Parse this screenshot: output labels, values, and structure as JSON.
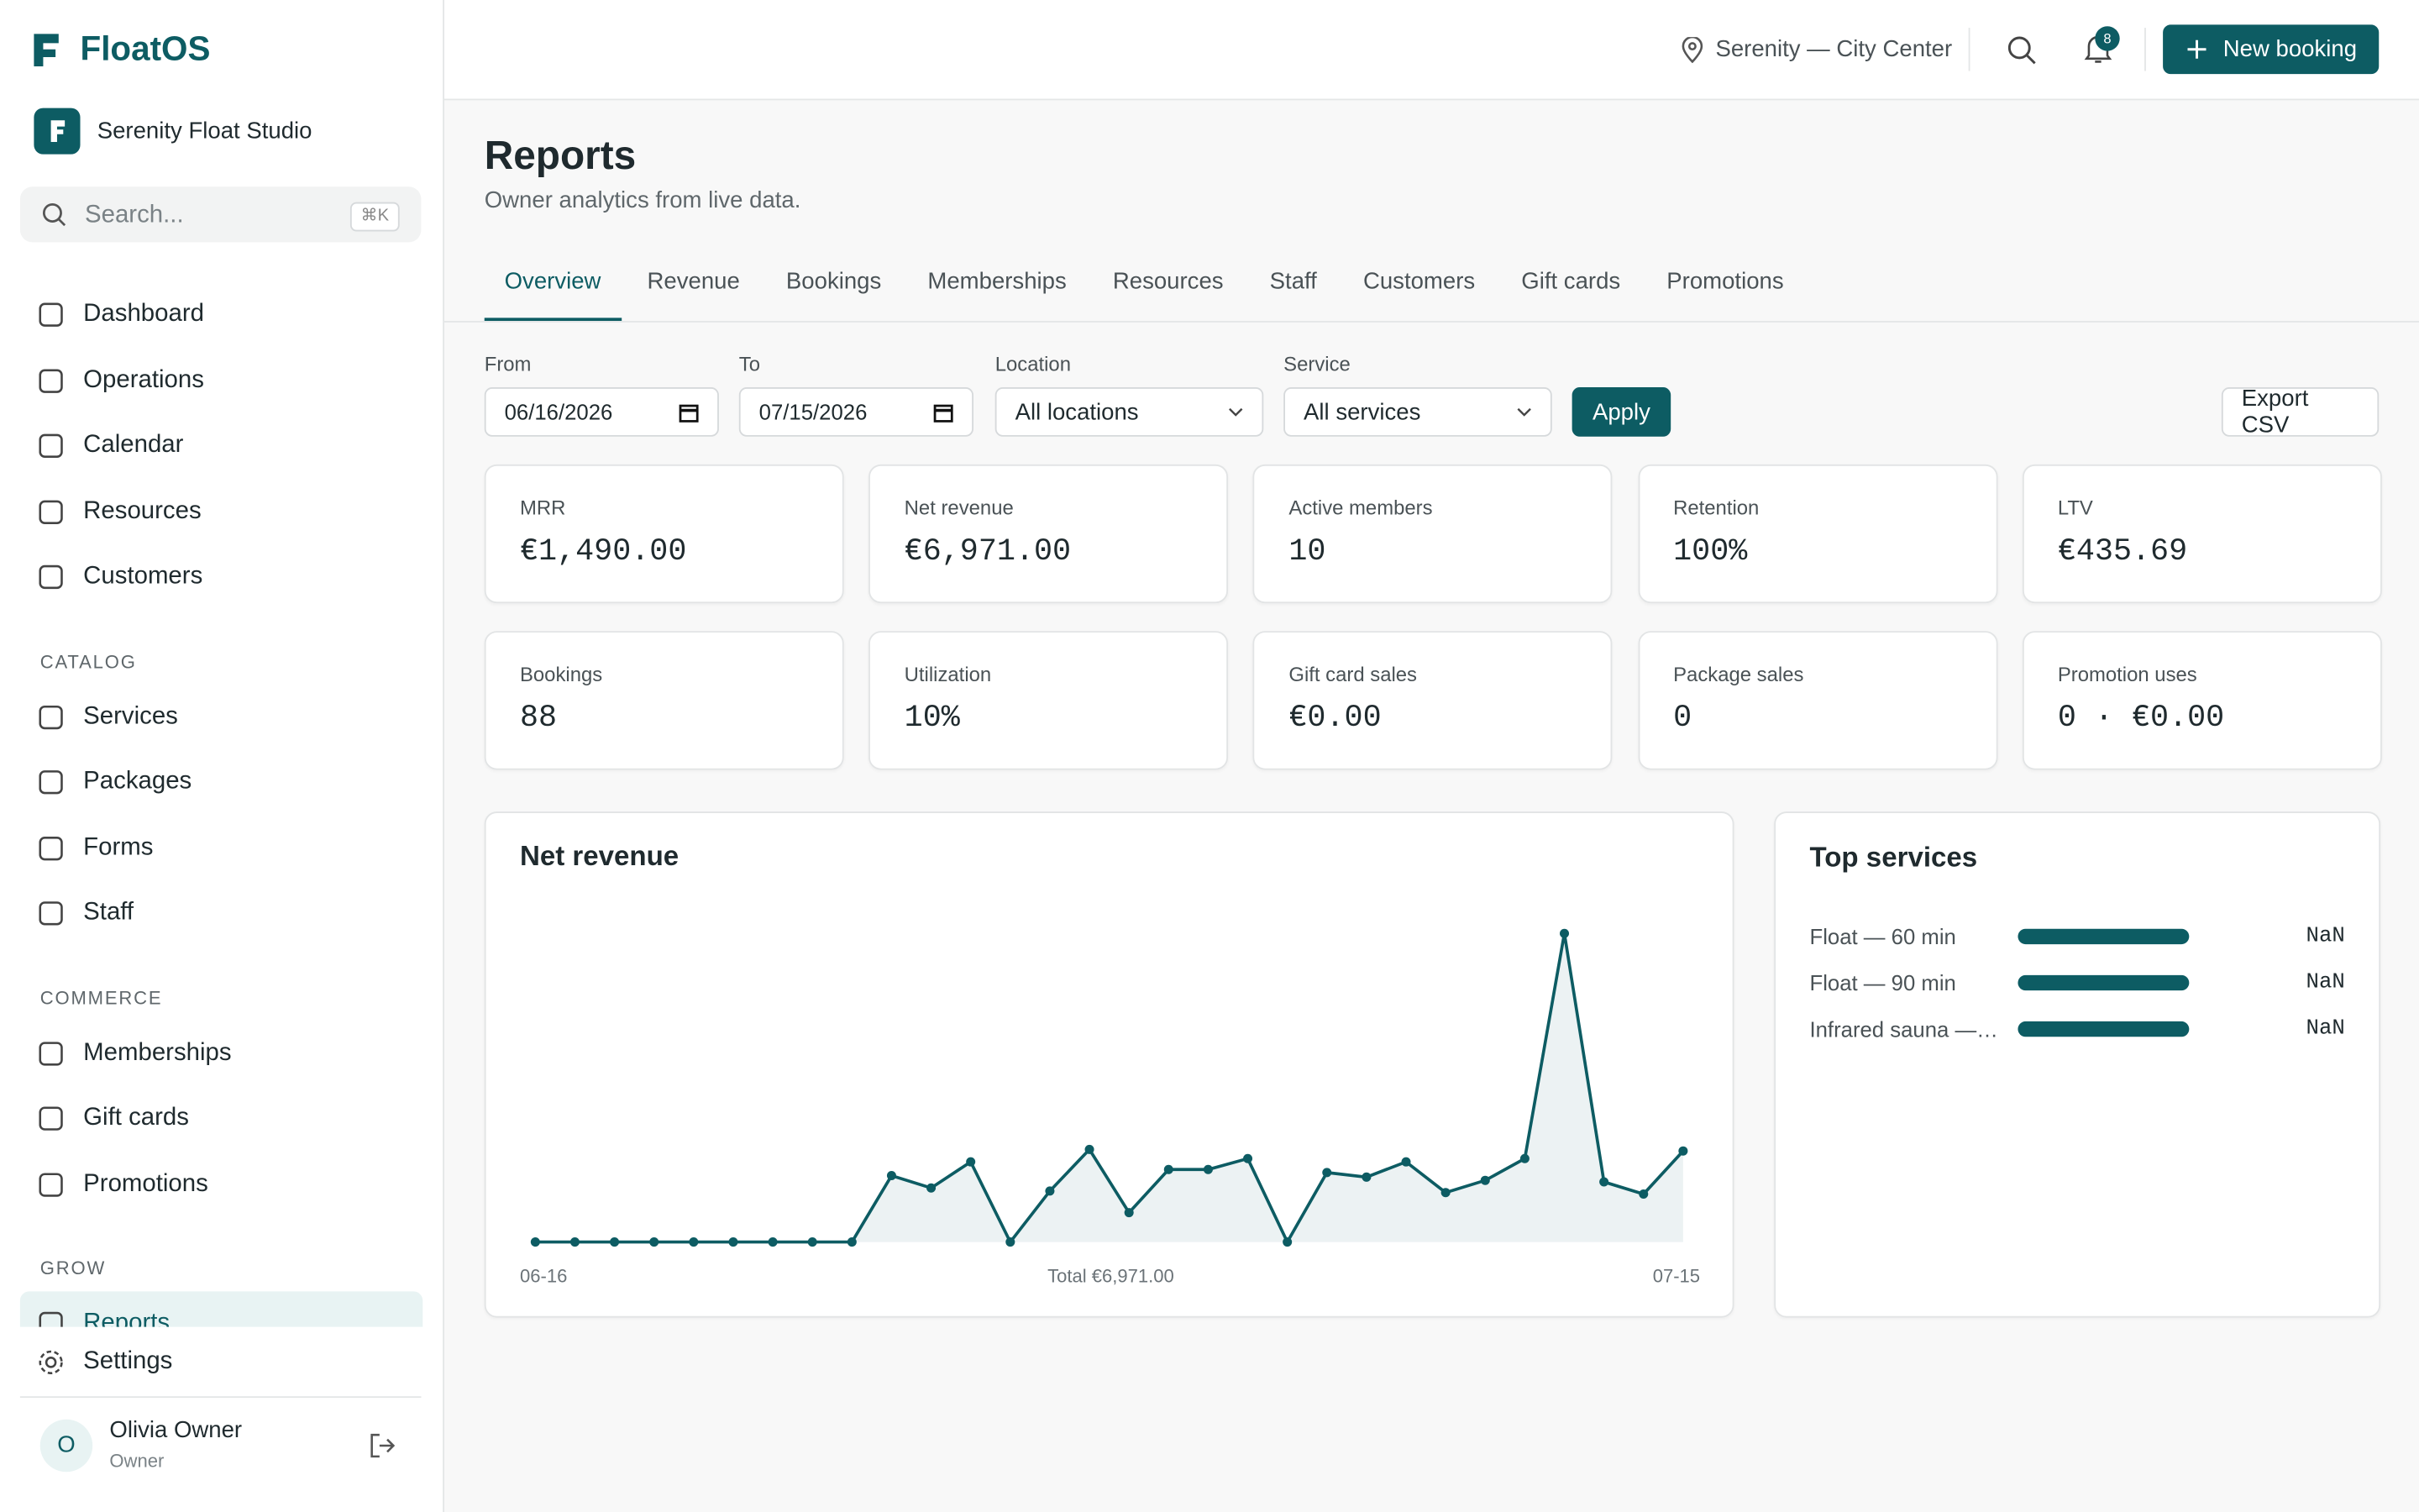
{
  "sidebar": {
    "brand": "FloatOS",
    "studio": "Serenity Float Studio",
    "search_placeholder": "Search...",
    "search_shortcut": "⌘K",
    "sections": [
      {
        "title": null,
        "items": [
          "Dashboard",
          "Operations",
          "Calendar",
          "Resources",
          "Customers"
        ]
      },
      {
        "title": "CATALOG",
        "items": [
          "Services",
          "Packages",
          "Forms",
          "Staff"
        ]
      },
      {
        "title": "COMMERCE",
        "items": [
          "Memberships",
          "Gift cards",
          "Promotions"
        ]
      },
      {
        "title": "GROW",
        "items": [
          "Reports"
        ]
      }
    ],
    "active": "Reports",
    "settings": "Settings",
    "user": {
      "avatar": "O",
      "name": "Olivia Owner",
      "role": "Owner"
    }
  },
  "topbar": {
    "location": "Serenity — City Center",
    "notifications": "8",
    "new_booking": "New booking"
  },
  "header": {
    "title": "Reports",
    "subtitle": "Owner analytics from live data."
  },
  "tabs": [
    "Overview",
    "Revenue",
    "Bookings",
    "Memberships",
    "Resources",
    "Staff",
    "Customers",
    "Gift cards",
    "Promotions"
  ],
  "filters": {
    "from_label": "From",
    "from_value": "06/16/2026",
    "to_label": "To",
    "to_value": "07/15/2026",
    "location_label": "Location",
    "location_value": "All locations",
    "service_label": "Service",
    "service_value": "All services",
    "apply": "Apply",
    "export": "Export CSV"
  },
  "kpis": [
    {
      "label": "MRR",
      "value": "€1,490.00"
    },
    {
      "label": "Net revenue",
      "value": "€6,971.00"
    },
    {
      "label": "Active members",
      "value": "10"
    },
    {
      "label": "Retention",
      "value": "100%"
    },
    {
      "label": "LTV",
      "value": "€435.69"
    },
    {
      "label": "Bookings",
      "value": "88"
    },
    {
      "label": "Utilization",
      "value": "10%"
    },
    {
      "label": "Gift card sales",
      "value": "€0.00"
    },
    {
      "label": "Package sales",
      "value": "0"
    },
    {
      "label": "Promotion uses",
      "value": "0 · €0.00"
    }
  ],
  "chart_data": {
    "type": "line",
    "title": "Net revenue",
    "annotation": "Total €6,971.00",
    "color": "#0d5c63",
    "categories": [
      "06-16",
      null,
      null,
      null,
      null,
      null,
      null,
      null,
      null,
      null,
      null,
      null,
      null,
      null,
      null,
      null,
      null,
      null,
      null,
      null,
      null,
      null,
      null,
      null,
      null,
      null,
      null,
      null,
      null,
      "07-15"
    ],
    "values": [
      0,
      0,
      0,
      0,
      0,
      0,
      0,
      0,
      0,
      305,
      248,
      368,
      0,
      234,
      425,
      135,
      333,
      333,
      383,
      0,
      319,
      298,
      368,
      227,
      283,
      383,
      1417,
      276,
      220,
      418
    ]
  },
  "top_services": {
    "title": "Top services",
    "items": [
      {
        "name": "Float — 60 min",
        "value": "NaN"
      },
      {
        "name": "Float — 90 min",
        "value": "NaN"
      },
      {
        "name": "Infrared sauna —…",
        "value": "NaN"
      }
    ]
  }
}
